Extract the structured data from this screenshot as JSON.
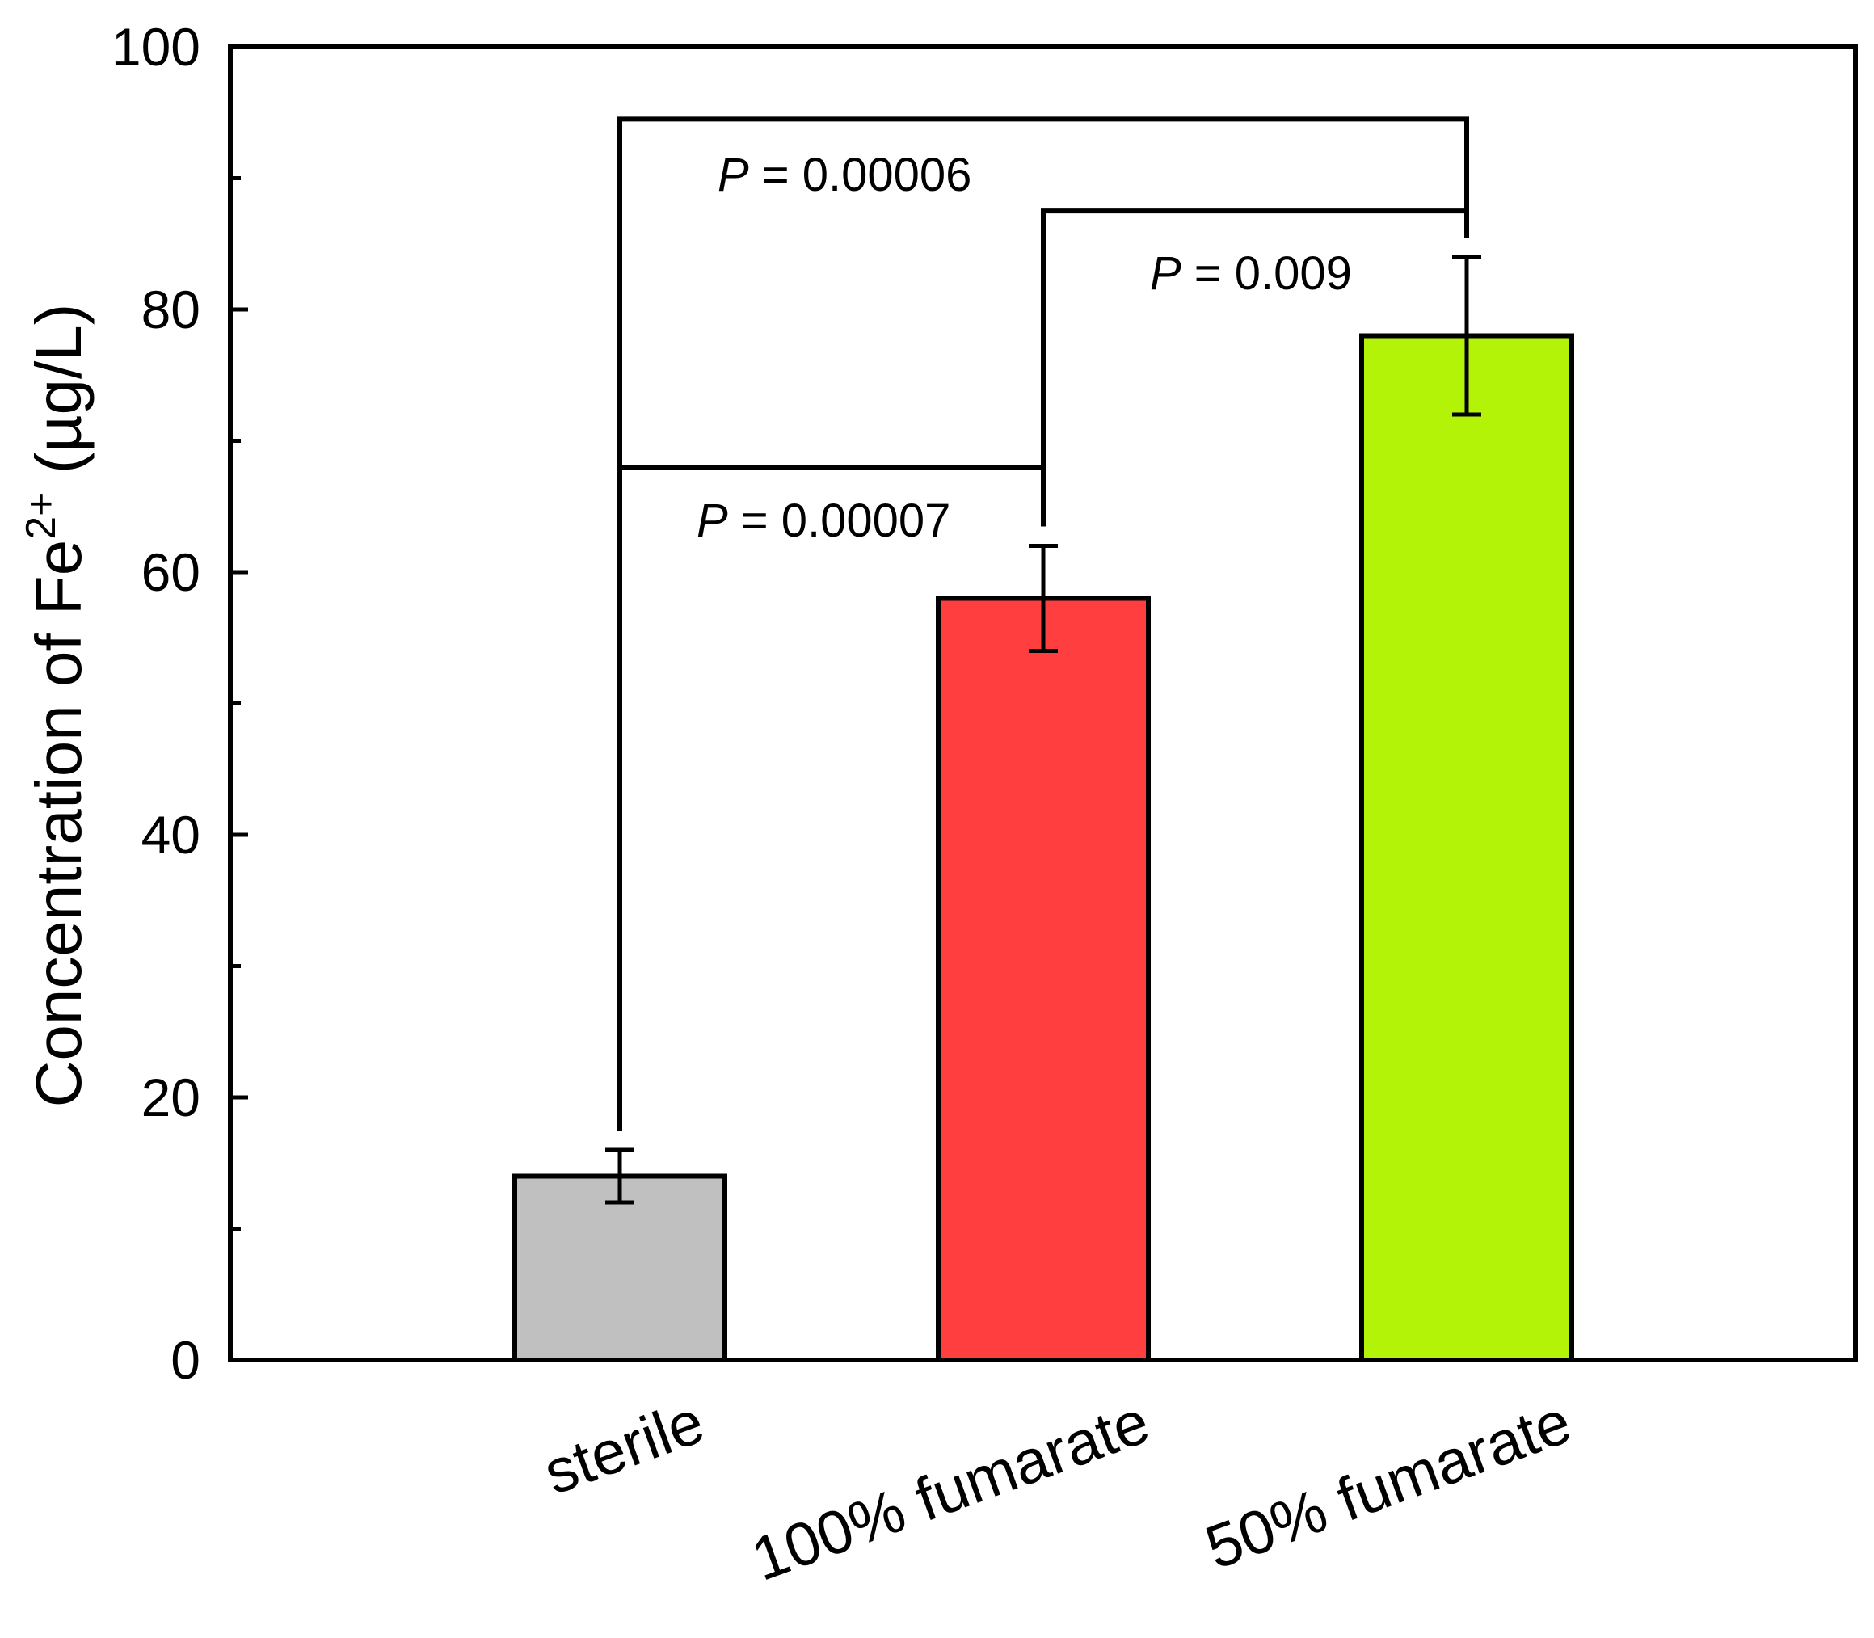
{
  "chart_data": {
    "type": "bar",
    "categories": [
      "sterile",
      "100% fumarate",
      "50% fumarate"
    ],
    "values": [
      14,
      58,
      78
    ],
    "errors": [
      2,
      4,
      6
    ],
    "colors": [
      "#c0c0c0",
      "#ff3f3f",
      "#b3f307"
    ],
    "ylabel": {
      "main": "Concentration of Fe",
      "superscript": "2+",
      "unit": " (µg/L)"
    },
    "ylim": [
      0,
      100
    ],
    "yticks": [
      "0",
      "20",
      "40",
      "60",
      "80",
      "100"
    ],
    "minor_ticks": [
      10,
      30,
      50,
      70,
      90
    ],
    "significance": [
      {
        "from": 0,
        "to": 2,
        "level": 94.5,
        "p_symbol": "P",
        "p_text": " = 0.00006"
      },
      {
        "from": 1,
        "to": 2,
        "level": 87.5,
        "p_symbol": "P",
        "p_text": " = 0.009"
      },
      {
        "from": 0,
        "to": 1,
        "level": 68,
        "p_symbol": "P",
        "p_text": " = 0.00007"
      }
    ]
  }
}
